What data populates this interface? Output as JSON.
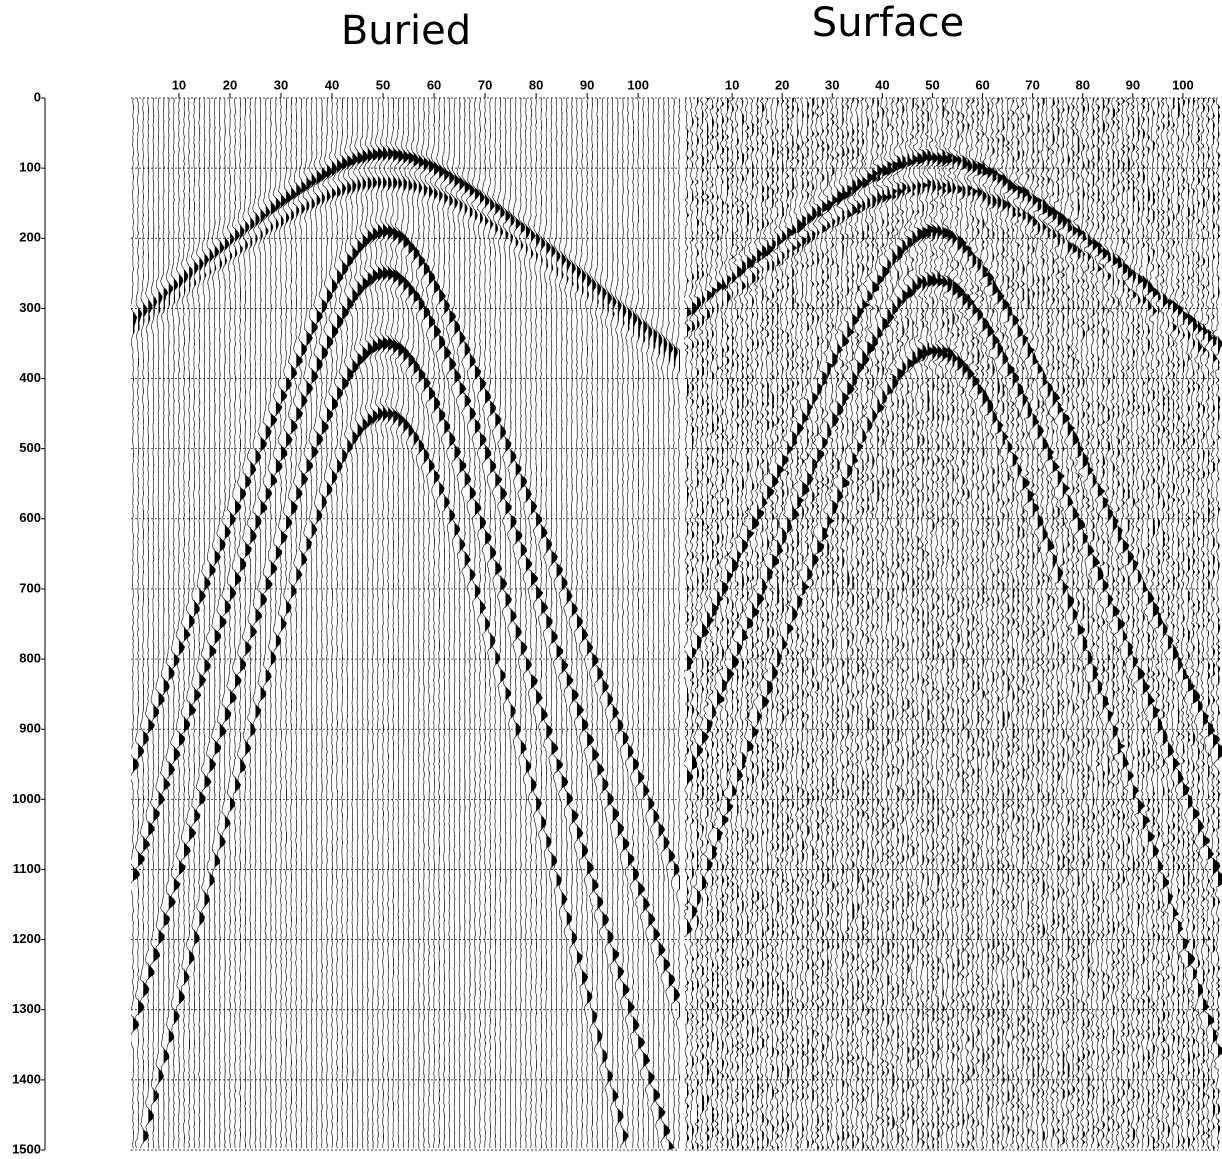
{
  "chart_data": [
    {
      "type": "seismic",
      "title": "Buried",
      "xlim": [
        1,
        108
      ],
      "xticks": [
        10,
        20,
        30,
        40,
        50,
        60,
        70,
        80,
        90,
        100
      ],
      "ylim": [
        0,
        1500
      ],
      "yticks": [
        0,
        100,
        200,
        300,
        400,
        500,
        600,
        700,
        800,
        900,
        1000,
        1100,
        1200,
        1300,
        1400,
        1500
      ],
      "grid": true
    },
    {
      "type": "seismic",
      "title": "Surface",
      "xlim": [
        1,
        107
      ],
      "xticks": [
        10,
        20,
        30,
        40,
        50,
        60,
        70,
        80,
        90,
        100
      ],
      "ylim": [
        0,
        1500
      ],
      "grid": true
    }
  ]
}
